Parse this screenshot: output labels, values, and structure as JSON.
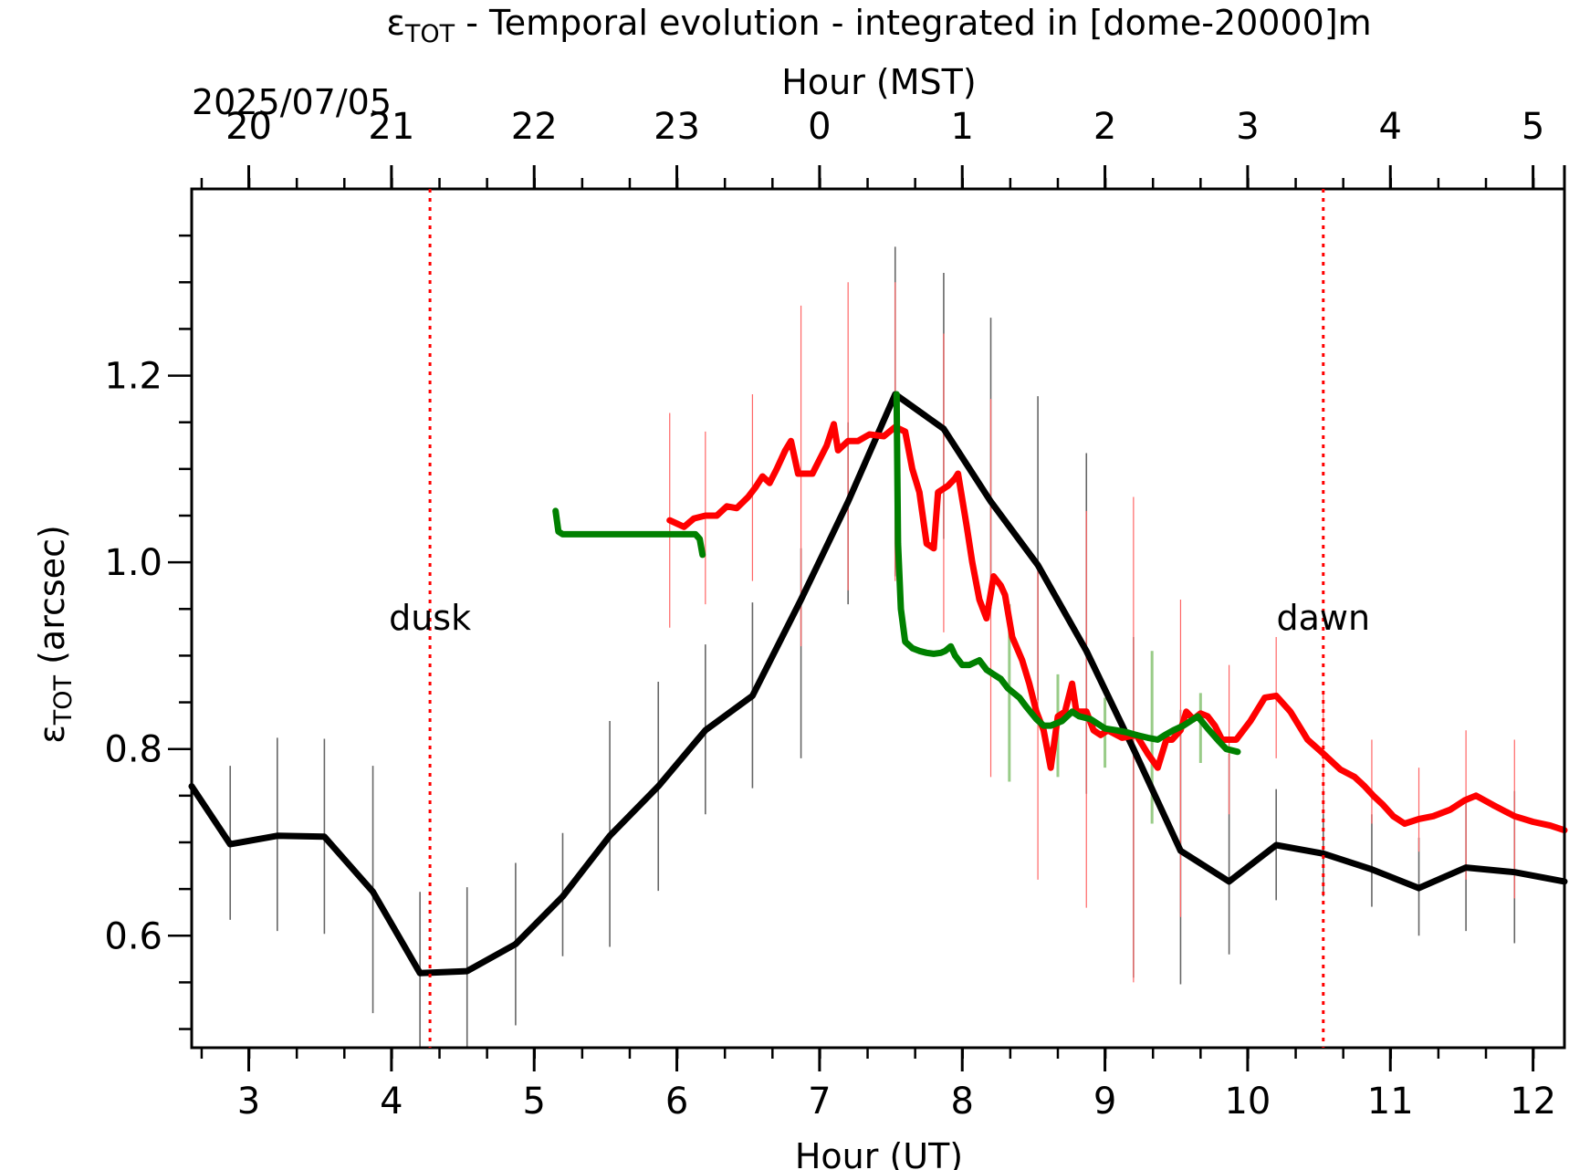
{
  "chart_data": {
    "type": "line",
    "title_prefix": "ε",
    "title_sub": "TOT",
    "title_rest": " - Temporal evolution - integrated in [dome-20000]m",
    "date": "2025/07/05",
    "xlabel": "Hour (UT)",
    "x2label": "Hour (MST)",
    "ylabel_prefix": "ε",
    "ylabel_sub": "TOT",
    "ylabel_rest": " (arcsec)",
    "xlim": [
      2.6,
      12.22
    ],
    "ylim": [
      0.48,
      1.4
    ],
    "xticks": [
      3,
      4,
      5,
      6,
      7,
      8,
      9,
      10,
      11,
      12
    ],
    "xtick_labels": [
      "3",
      "4",
      "5",
      "6",
      "7",
      "8",
      "9",
      "10",
      "11",
      "12"
    ],
    "x2ticks": [
      2.6,
      3.6,
      4.6,
      5.6,
      6.6,
      7.6,
      8.6,
      9.6,
      10.6,
      11.6,
      12.6
    ],
    "x2tick_labels": [
      "20",
      "21",
      "22",
      "23",
      "0",
      "1",
      "2",
      "3",
      "4",
      "5"
    ],
    "x2tick_positions": [
      3,
      4,
      5,
      6,
      7,
      8,
      9,
      10,
      11,
      12
    ],
    "yticks": [
      0.6,
      0.8,
      1.0,
      1.2
    ],
    "ytick_labels": [
      "0.6",
      "0.8",
      "1.0",
      "1.2"
    ],
    "annotations": [
      {
        "text": "dusk",
        "x": 4.27,
        "color": "#ff0000"
      },
      {
        "text": "dawn",
        "x": 10.53,
        "color": "#ff0000"
      }
    ],
    "series": [
      {
        "color": "#000000",
        "x": [
          2.6,
          2.87,
          3.2,
          3.53,
          3.87,
          4.2,
          4.53,
          4.87,
          5.2,
          5.53,
          5.87,
          6.2,
          6.53,
          6.87,
          7.2,
          7.53,
          7.87,
          8.2,
          8.53,
          8.87,
          9.2,
          9.53,
          9.87,
          10.2,
          10.53,
          10.87,
          11.2,
          11.53,
          11.87,
          12.22
        ],
        "y": [
          0.76,
          0.698,
          0.707,
          0.706,
          0.647,
          0.56,
          0.562,
          0.591,
          0.642,
          0.707,
          0.76,
          0.82,
          0.857,
          0.96,
          1.065,
          1.18,
          1.143,
          1.065,
          0.997,
          0.905,
          0.8,
          0.691,
          0.658,
          0.697,
          0.688,
          0.671,
          0.651,
          0.673,
          0.668,
          0.658
        ],
        "err_low": [
          null,
          0.617,
          0.605,
          0.602,
          0.517,
          0.477,
          0.475,
          0.504,
          0.578,
          0.588,
          0.648,
          0.73,
          0.758,
          0.79,
          0.955,
          0.985,
          1.025,
          0.95,
          0.852,
          0.752,
          0.555,
          0.548,
          0.58,
          0.638,
          0.642,
          0.631,
          0.6,
          0.605,
          0.592,
          0.575
        ],
        "err_high": [
          null,
          0.782,
          0.812,
          0.811,
          0.782,
          0.647,
          0.652,
          0.678,
          0.71,
          0.83,
          0.872,
          0.912,
          0.957,
          1.015,
          1.15,
          1.338,
          1.31,
          1.262,
          1.178,
          1.117,
          0.92,
          0.842,
          0.795,
          0.757,
          0.757,
          0.73,
          0.705,
          0.742,
          0.755,
          0.8
        ]
      },
      {
        "color": "#ff0000",
        "x": [
          5.95,
          6.05,
          6.12,
          6.2,
          6.28,
          6.35,
          6.42,
          6.5,
          6.55,
          6.6,
          6.65,
          6.7,
          6.76,
          6.8,
          6.85,
          6.95,
          7.0,
          7.05,
          7.1,
          7.13,
          7.2,
          7.27,
          7.35,
          7.45,
          7.53,
          7.6,
          7.65,
          7.7,
          7.75,
          7.8,
          7.83,
          7.9,
          7.95,
          7.97,
          8.03,
          8.07,
          8.12,
          8.17,
          8.22,
          8.27,
          8.3,
          8.35,
          8.42,
          8.47,
          8.52,
          8.57,
          8.62,
          8.67,
          8.72,
          8.77,
          8.8,
          8.87,
          8.92,
          8.97,
          9.02,
          9.12,
          9.22,
          9.3,
          9.37,
          9.43,
          9.47,
          9.53,
          9.57,
          9.62,
          9.67,
          9.72,
          9.77,
          9.82,
          9.92,
          10.02,
          10.12,
          10.2,
          10.3,
          10.42,
          10.53,
          10.65,
          10.75,
          10.82,
          10.88,
          10.95,
          11.02,
          11.1,
          11.2,
          11.3,
          11.42,
          11.52,
          11.6,
          11.72,
          11.87,
          12.0,
          12.12,
          12.22
        ],
        "y": [
          1.045,
          1.038,
          1.047,
          1.05,
          1.05,
          1.06,
          1.058,
          1.07,
          1.08,
          1.092,
          1.085,
          1.1,
          1.12,
          1.13,
          1.095,
          1.095,
          1.11,
          1.125,
          1.148,
          1.12,
          1.13,
          1.13,
          1.137,
          1.135,
          1.145,
          1.14,
          1.1,
          1.075,
          1.02,
          1.015,
          1.075,
          1.082,
          1.09,
          1.095,
          1.04,
          1.0,
          0.96,
          0.94,
          0.985,
          0.975,
          0.965,
          0.92,
          0.895,
          0.87,
          0.84,
          0.82,
          0.78,
          0.835,
          0.84,
          0.87,
          0.84,
          0.84,
          0.82,
          0.815,
          0.82,
          0.812,
          0.815,
          0.795,
          0.78,
          0.81,
          0.81,
          0.82,
          0.84,
          0.832,
          0.838,
          0.835,
          0.825,
          0.81,
          0.81,
          0.83,
          0.855,
          0.857,
          0.84,
          0.81,
          0.795,
          0.778,
          0.77,
          0.76,
          0.75,
          0.74,
          0.728,
          0.72,
          0.725,
          0.728,
          0.735,
          0.745,
          0.75,
          0.74,
          0.728,
          0.722,
          0.718,
          0.713
        ],
        "err_x": [
          5.95,
          6.2,
          6.53,
          6.87,
          7.2,
          7.53,
          7.87,
          8.2,
          8.53,
          8.87,
          9.2,
          9.53,
          9.87,
          10.2,
          10.53,
          10.87,
          11.2,
          11.53,
          11.87,
          12.22
        ],
        "err_low": [
          0.93,
          0.955,
          0.98,
          0.91,
          0.97,
          0.98,
          0.925,
          0.77,
          0.66,
          0.63,
          0.55,
          0.62,
          0.73,
          0.79,
          0.73,
          0.72,
          0.69,
          0.66,
          0.64,
          0.61
        ],
        "err_high": [
          1.16,
          1.14,
          1.18,
          1.275,
          1.3,
          1.3,
          1.245,
          1.175,
          1.0,
          1.055,
          1.07,
          0.96,
          0.89,
          0.92,
          0.86,
          0.81,
          0.78,
          0.82,
          0.81,
          0.81
        ]
      },
      {
        "color": "#008000",
        "x": [
          5.15,
          5.17,
          5.2,
          5.4,
          5.6,
          5.8,
          6.0,
          6.13,
          6.16,
          6.18,
          7.54,
          7.55,
          7.57,
          7.6,
          7.65,
          7.7,
          7.75,
          7.8,
          7.85,
          7.88,
          7.92,
          7.95,
          8.0,
          8.05,
          8.12,
          8.17,
          8.22,
          8.27,
          8.32,
          8.4,
          8.45,
          8.52,
          8.57,
          8.62,
          8.7,
          8.77,
          8.82,
          8.9,
          9.0,
          9.08,
          9.15,
          9.22,
          9.3,
          9.37,
          9.42,
          9.48,
          9.55,
          9.6,
          9.65,
          9.72,
          9.8,
          9.85,
          9.93
        ],
        "y": [
          1.055,
          1.033,
          1.03,
          1.03,
          1.03,
          1.03,
          1.03,
          1.03,
          1.025,
          1.008,
          1.18,
          1.02,
          0.95,
          0.915,
          0.908,
          0.905,
          0.903,
          0.902,
          0.903,
          0.905,
          0.91,
          0.9,
          0.89,
          0.89,
          0.895,
          0.885,
          0.88,
          0.875,
          0.865,
          0.855,
          0.845,
          0.832,
          0.825,
          0.825,
          0.83,
          0.84,
          0.835,
          0.832,
          0.822,
          0.82,
          0.818,
          0.815,
          0.812,
          0.81,
          0.815,
          0.82,
          0.825,
          0.83,
          0.835,
          0.822,
          0.808,
          0.8,
          0.797
        ],
        "err_x": [
          8.33,
          8.67,
          9.0,
          9.33,
          9.67
        ],
        "err_low": [
          0.765,
          0.77,
          0.78,
          0.72,
          0.785
        ],
        "err_high": [
          0.955,
          0.88,
          0.855,
          0.905,
          0.86
        ]
      }
    ]
  }
}
